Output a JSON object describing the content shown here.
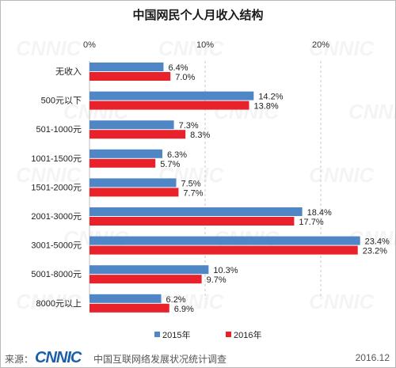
{
  "chart_data": {
    "type": "bar",
    "orientation": "horizontal",
    "title": "中国网民个人月收入结构",
    "categories": [
      "无收入",
      "500元以下",
      "501-1000元",
      "1001-1500元",
      "1501-2000元",
      "2001-3000元",
      "3001-5000元",
      "5001-8000元",
      "8000元以上"
    ],
    "series": [
      {
        "name": "2015年",
        "color": "#4f86c6",
        "values": [
          6.4,
          14.2,
          7.3,
          6.3,
          7.5,
          18.4,
          23.4,
          10.3,
          6.2
        ]
      },
      {
        "name": "2016年",
        "color": "#e8212b",
        "values": [
          7.0,
          13.8,
          8.3,
          5.7,
          7.7,
          17.7,
          23.2,
          9.7,
          6.9
        ]
      }
    ],
    "value_unit": "%",
    "xlim": [
      0,
      25
    ],
    "xticks": [
      0,
      10,
      20
    ],
    "xtick_labels": [
      "0%",
      "10%",
      "20%"
    ],
    "axis_position": "top",
    "grid": "dashed vertical",
    "legend_position": "bottom-center"
  },
  "watermark": "CNNIC",
  "footer": {
    "source_label": "来源：",
    "logo_text": "CNNIC",
    "org_name": "中国互联网络发展状况统计调查",
    "date": "2016.12"
  }
}
